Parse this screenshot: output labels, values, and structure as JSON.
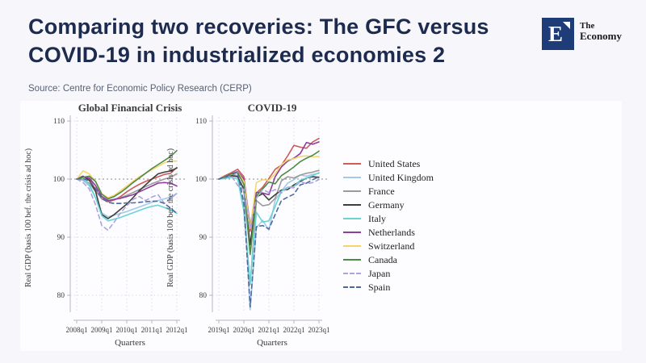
{
  "header": {
    "title": "Comparing two recoveries: The GFC versus COVID-19 in industrialized economies 2",
    "source": "Source: Centre for Economic Policy Research (CERP)",
    "logo": {
      "letter": "E",
      "name_line1": "The",
      "name_line2": "Economy",
      "box_color": "#1e3c78"
    }
  },
  "colors": {
    "page_background": "#f7f7fb",
    "panel_background": "#fdfdff",
    "title_text": "#1d2b4f",
    "source_text": "#566077",
    "reference_line": "#8a8a8a",
    "gridline": "#d9d9e3",
    "axis": "#b5b5bd"
  },
  "chart_data": [
    {
      "type": "line",
      "title": "Global Financial Crisis",
      "xlabel": "Quarters",
      "ylabel": "Real GDP (basis 100 bef. the crisis ad hoc)",
      "ylim": [
        77,
        110
      ],
      "y_ticks": [
        80,
        90,
        100,
        110
      ],
      "x_ticks": [
        "2008q1",
        "2009q1",
        "2010q1",
        "2011q1",
        "2012q1"
      ],
      "quarters_per_tick": 4,
      "reference_line": 100,
      "grid": true,
      "legend_position": "right",
      "series": [
        {
          "name": "United States",
          "color": "#cf5b5b",
          "dashed": false,
          "values": [
            100,
            100.4,
            100.1,
            98.2,
            96.6,
            96.1,
            96.4,
            97.0,
            97.8,
            98.5,
            99.1,
            99.6,
            100.0,
            100.4,
            100.8,
            101.0,
            102.0
          ]
        },
        {
          "name": "United Kingdom",
          "color": "#a3c9ea",
          "dashed": false,
          "values": [
            100,
            99.8,
            98.8,
            96.8,
            94.2,
            93.5,
            93.8,
            94.1,
            94.4,
            94.8,
            95.2,
            95.6,
            96.0,
            96.3,
            96.6,
            96.9,
            97.5
          ]
        },
        {
          "name": "France",
          "color": "#9b9b9b",
          "dashed": false,
          "values": [
            100,
            99.9,
            99.3,
            97.9,
            96.7,
            96.3,
            96.5,
            96.8,
            97.2,
            97.7,
            98.2,
            98.7,
            99.2,
            99.6,
            100.0,
            100.3,
            100.9
          ]
        },
        {
          "name": "Germany",
          "color": "#3d3d3d",
          "dashed": false,
          "values": [
            100,
            100.5,
            99.8,
            97.9,
            93.9,
            93.2,
            93.9,
            94.8,
            95.7,
            96.8,
            98.0,
            99.0,
            100.0,
            100.9,
            101.2,
            101.4,
            101.9
          ]
        },
        {
          "name": "Italy",
          "color": "#6ad4d4",
          "dashed": false,
          "values": [
            100,
            100.1,
            99.1,
            96.8,
            93.7,
            92.8,
            93.1,
            93.4,
            93.8,
            94.2,
            94.6,
            95.0,
            95.3,
            95.5,
            95.1,
            94.7,
            94.1
          ]
        },
        {
          "name": "Netherlands",
          "color": "#8d3f9b",
          "dashed": false,
          "values": [
            100,
            100.4,
            100.2,
            98.9,
            97.0,
            96.3,
            96.5,
            96.7,
            97.0,
            97.3,
            97.8,
            98.3,
            98.8,
            99.3,
            99.4,
            99.3,
            98.8
          ]
        },
        {
          "name": "Switzerland",
          "color": "#f4d66d",
          "dashed": false,
          "values": [
            100,
            101.4,
            100.9,
            99.6,
            97.5,
            96.8,
            97.2,
            98.0,
            98.8,
            99.6,
            100.4,
            101.0,
            101.6,
            102.2,
            102.8,
            103.1,
            103.1
          ]
        },
        {
          "name": "Canada",
          "color": "#4e8a47",
          "dashed": false,
          "values": [
            100,
            100.3,
            100.5,
            99.6,
            97.4,
            96.6,
            97.0,
            97.7,
            98.5,
            99.4,
            100.2,
            101.0,
            101.8,
            102.5,
            103.2,
            103.9,
            104.9
          ]
        },
        {
          "name": "Japan",
          "color": "#a9a5de",
          "dashed": true,
          "values": [
            100,
            99.4,
            98.3,
            95.6,
            92.0,
            91.2,
            92.6,
            94.2,
            95.4,
            96.5,
            97.0,
            96.3,
            96.9,
            97.3,
            95.8,
            96.6,
            97.6
          ]
        },
        {
          "name": "Spain",
          "color": "#4d6a9e",
          "dashed": true,
          "values": [
            100,
            100.1,
            99.7,
            98.4,
            96.7,
            96.0,
            95.8,
            95.8,
            95.9,
            95.9,
            96.0,
            96.1,
            96.2,
            96.2,
            95.8,
            95.0,
            94.1
          ]
        }
      ]
    },
    {
      "type": "line",
      "title": "COVID-19",
      "xlabel": "Quarters",
      "ylabel": "Real GDP (basis 100 bef. the crisis ad hoc)",
      "ylim": [
        77,
        110
      ],
      "y_ticks": [
        80,
        90,
        100,
        110
      ],
      "x_ticks": [
        "2019q1",
        "2020q1",
        "2021q1",
        "2022q1",
        "2023q1"
      ],
      "quarters_per_tick": 4,
      "reference_line": 100,
      "grid": true,
      "legend_position": "right",
      "series": [
        {
          "name": "United States",
          "color": "#cf5b5b",
          "dashed": false,
          "values": [
            100,
            100.6,
            101.1,
            101.7,
            100.4,
            91.0,
            97.6,
            98.6,
            100.1,
            101.7,
            102.4,
            104.0,
            105.8,
            105.5,
            105.3,
            106.4,
            107.0
          ]
        },
        {
          "name": "United Kingdom",
          "color": "#a3c9ea",
          "dashed": false,
          "values": [
            100,
            100.1,
            100.4,
            100.6,
            97.8,
            77.5,
            91.6,
            92.9,
            91.2,
            96.4,
            97.9,
            99.3,
            99.9,
            100.7,
            100.5,
            100.8,
            101.0
          ]
        },
        {
          "name": "France",
          "color": "#9b9b9b",
          "dashed": false,
          "values": [
            100,
            100.4,
            100.8,
            100.6,
            94.7,
            81.8,
            96.3,
            95.4,
            95.6,
            96.7,
            99.7,
            100.4,
            100.2,
            100.7,
            101.0,
            101.2,
            101.5
          ]
        },
        {
          "name": "Germany",
          "color": "#3d3d3d",
          "dashed": false,
          "values": [
            100,
            100.3,
            100.6,
            100.4,
            98.3,
            88.7,
            96.9,
            97.5,
            96.4,
            97.3,
            98.1,
            98.2,
            99.0,
            99.6,
            100.2,
            100.4,
            100.3
          ]
        },
        {
          "name": "Italy",
          "color": "#6ad4d4",
          "dashed": false,
          "values": [
            100,
            100.1,
            100.3,
            100.0,
            94.5,
            82.0,
            94.3,
            92.6,
            92.8,
            95.3,
            97.9,
            98.6,
            98.7,
            99.8,
            100.2,
            100.6,
            101.1
          ]
        },
        {
          "name": "Netherlands",
          "color": "#8d3f9b",
          "dashed": false,
          "values": [
            100,
            100.4,
            100.9,
            101.3,
            100.0,
            92.0,
            97.7,
            97.6,
            97.3,
            100.4,
            102.1,
            103.1,
            103.6,
            104.4,
            106.3,
            106.0,
            106.4
          ]
        },
        {
          "name": "Switzerland",
          "color": "#f4d66d",
          "dashed": false,
          "values": [
            100,
            100.4,
            100.8,
            101.2,
            99.6,
            91.5,
            99.4,
            99.9,
            99.8,
            100.9,
            102.5,
            103.3,
            103.5,
            103.9,
            104.0,
            103.8,
            103.9
          ]
        },
        {
          "name": "Canada",
          "color": "#4e8a47",
          "dashed": false,
          "values": [
            100,
            100.4,
            100.9,
            101.1,
            99.1,
            87.0,
            97.1,
            98.3,
            99.5,
            99.2,
            100.6,
            101.3,
            102.1,
            103.0,
            103.6,
            104.1,
            104.8
          ]
        },
        {
          "name": "Japan",
          "color": "#a9a5de",
          "dashed": true,
          "values": [
            100,
            100.4,
            100.6,
            98.9,
            98.2,
            91.5,
            96.7,
            98.2,
            97.7,
            98.2,
            97.6,
            98.6,
            98.5,
            99.6,
            99.2,
            99.4,
            99.9
          ]
        },
        {
          "name": "Spain",
          "color": "#4d6a9e",
          "dashed": true,
          "values": [
            100,
            100.4,
            100.8,
            101.2,
            95.8,
            78.0,
            91.8,
            92.0,
            91.4,
            93.9,
            96.3,
            96.9,
            97.4,
            99.0,
            99.3,
            99.9,
            100.4
          ]
        }
      ]
    }
  ]
}
